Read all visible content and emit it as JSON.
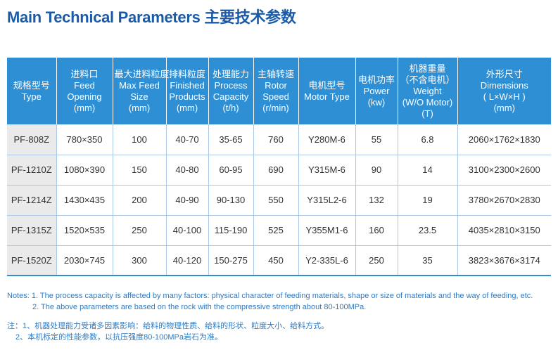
{
  "title": "Main Technical Parameters 主要技术参数",
  "table": {
    "headers": [
      [
        "规格型号",
        "Type"
      ],
      [
        "进料口",
        "Feed",
        "Opening",
        "(mm)"
      ],
      [
        "最大进料粒度",
        "Max Feed",
        "Size",
        "(mm)"
      ],
      [
        "排料粒度",
        "Finished",
        "Products",
        "(mm)"
      ],
      [
        "处理能力",
        "Process",
        "Capacity",
        "(t/h)"
      ],
      [
        "主轴转速",
        "Rotor",
        "Speed",
        "(r/min)"
      ],
      [
        "电机型号",
        "Motor Type"
      ],
      [
        "电机功率",
        "Power",
        "(kw)"
      ],
      [
        "机器重量",
        "（不含电机）",
        "Weight",
        "(W/O Motor)",
        "(T)"
      ],
      [
        "外形尺寸",
        "Dimensions",
        "( L×W×H )",
        "(mm)"
      ]
    ],
    "rows": [
      [
        "PF-808Z",
        "780×350",
        "100",
        "40-70",
        "35-65",
        "760",
        "Y280M-6",
        "55",
        "6.8",
        "2060×1762×1830"
      ],
      [
        "PF-1210Z",
        "1080×390",
        "150",
        "40-80",
        "60-95",
        "690",
        "Y315M-6",
        "90",
        "14",
        "3100×2300×2600"
      ],
      [
        "PF-1214Z",
        "1430×435",
        "200",
        "40-90",
        "90-130",
        "550",
        "Y315L2-6",
        "132",
        "19",
        "3780×2670×2830"
      ],
      [
        "PF-1315Z",
        "1520×535",
        "250",
        "40-100",
        "115-190",
        "525",
        "Y355M1-6",
        "160",
        "23.5",
        "4035×2810×3150"
      ],
      [
        "PF-1520Z",
        "2030×745",
        "300",
        "40-120",
        "150-275",
        "450",
        "Y2-335L-6",
        "250",
        "35",
        "3823×3676×3174"
      ]
    ]
  },
  "notes_en": [
    "Notes: 1. The process capacity is affected by many factors: physical character of feeding materials, shape or size of materials and the way of feeding, etc.",
    "2. The above parameters are based on the rock with the compressive strength about 80-100MPa."
  ],
  "notes_cn": [
    "注：1、机器处理能力受诸多因素影响：给料的物理性质、给料的形状、粒度大小、给料方式。",
    "2、本机标定的性能参数，以抗压强度80-100MPa岩石为准。"
  ],
  "colors": {
    "title": "#1b5aa6",
    "header_bg": "#2f8fd4",
    "notes": "#2e7bc4",
    "type_cell_bg": "#eaeaea"
  }
}
